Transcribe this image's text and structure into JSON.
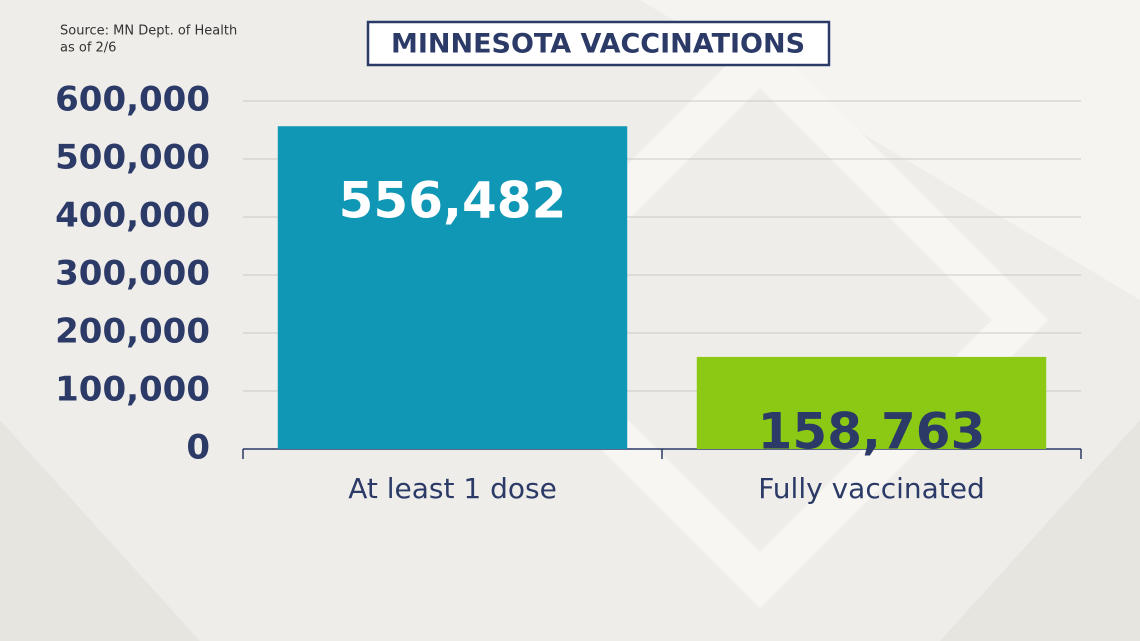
{
  "chart_data": {
    "type": "bar",
    "title": "MINNESOTA VACCINATIONS",
    "notes": [
      "Source: MN Dept. of Health",
      "as of 2/6"
    ],
    "categories": [
      "At least 1 dose",
      "Fully vaccinated"
    ],
    "values": [
      556482,
      158763
    ],
    "value_labels": [
      "556,482",
      "158,763"
    ],
    "colors": [
      "#1097b5",
      "#8cc914"
    ],
    "value_label_colors": [
      "#ffffff",
      "#2b3a67"
    ],
    "ylim": [
      0,
      600000
    ],
    "yticks": [
      0,
      {
        "value": 100000,
        "label": "100,000"
      },
      {
        "value": 200000,
        "label": "200,000"
      },
      {
        "value": 300000,
        "label": "300,000"
      },
      {
        "value": 400000,
        "label": "400,000"
      },
      {
        "value": 500000,
        "label": "500,000"
      },
      {
        "value": 600000,
        "label": "600,000"
      }
    ],
    "grid": true
  }
}
